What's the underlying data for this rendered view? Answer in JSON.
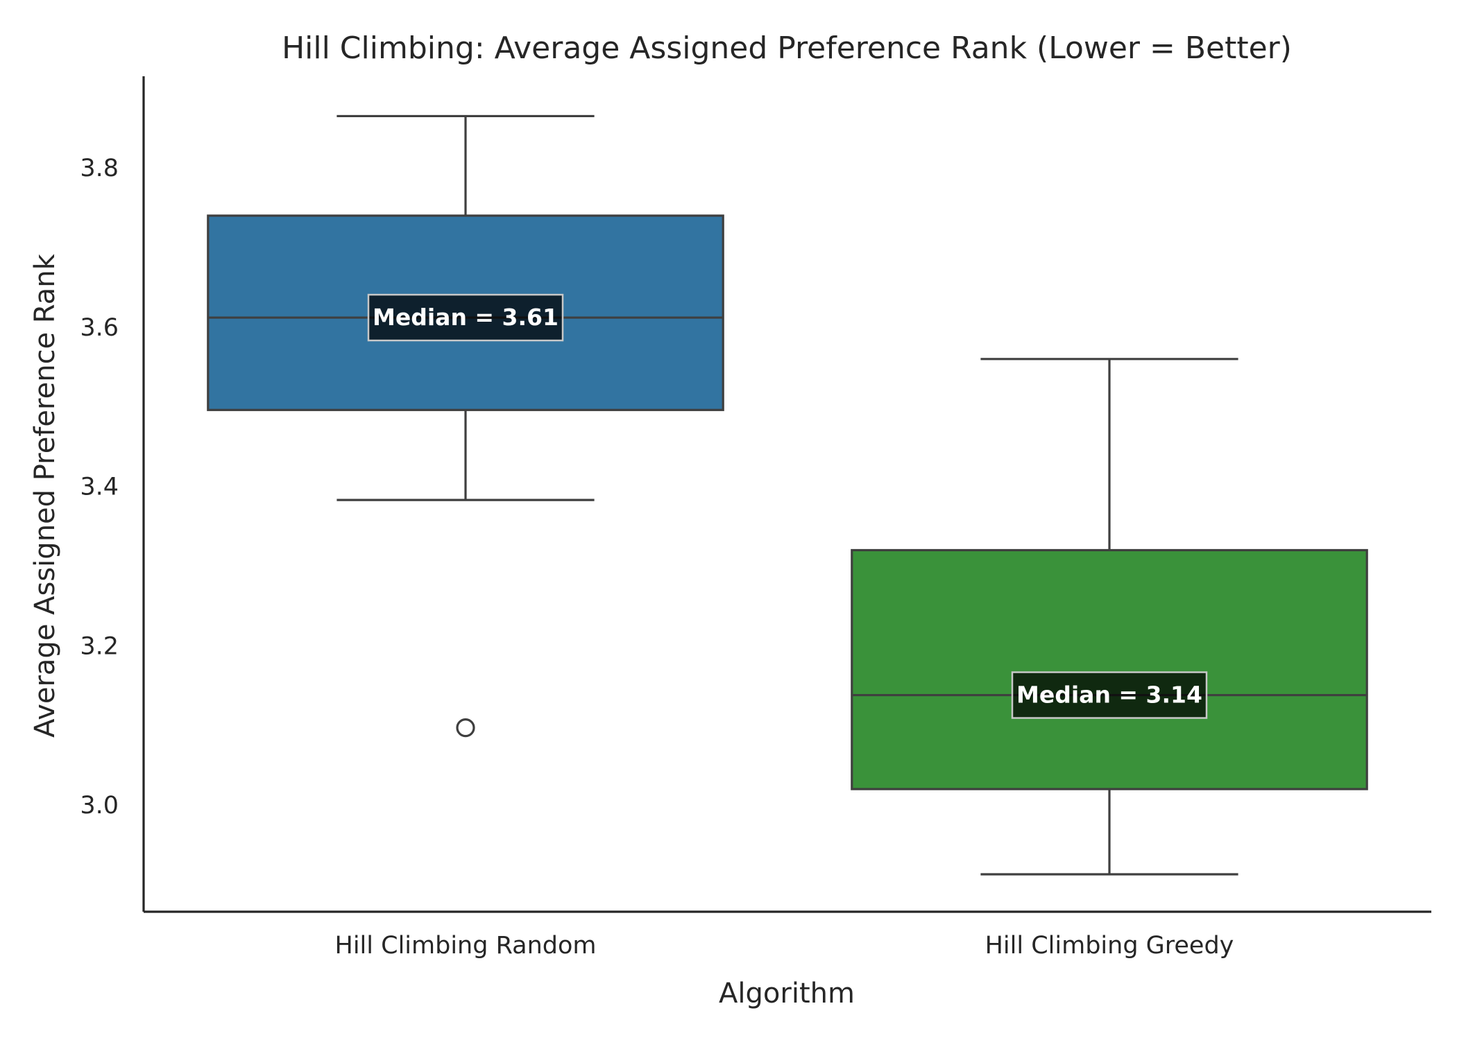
{
  "chart_data": {
    "type": "box",
    "title": "Hill Climbing: Average Assigned Preference Rank (Lower = Better)",
    "xlabel": "Algorithm",
    "ylabel": "Average Assigned Preference Rank",
    "ylim": [
      2.866,
      3.915
    ],
    "yticks": [
      "3.0",
      "3.2",
      "3.4",
      "3.6",
      "3.8"
    ],
    "grid": false,
    "categories": [
      "Hill Climbing Random",
      "Hill Climbing Greedy"
    ],
    "boxes": [
      {
        "category": "Hill Climbing Random",
        "whisker_low": 3.383,
        "q1": 3.496,
        "median": 3.612,
        "q3": 3.74,
        "whisker_high": 3.865,
        "outliers": [
          3.097
        ],
        "color": "#3274a1",
        "median_label": "Median = 3.61"
      },
      {
        "category": "Hill Climbing Greedy",
        "whisker_low": 2.913,
        "q1": 3.02,
        "median": 3.138,
        "q3": 3.32,
        "whisker_high": 3.56,
        "outliers": [],
        "color": "#3a923a",
        "median_label": "Median = 3.14"
      }
    ]
  }
}
